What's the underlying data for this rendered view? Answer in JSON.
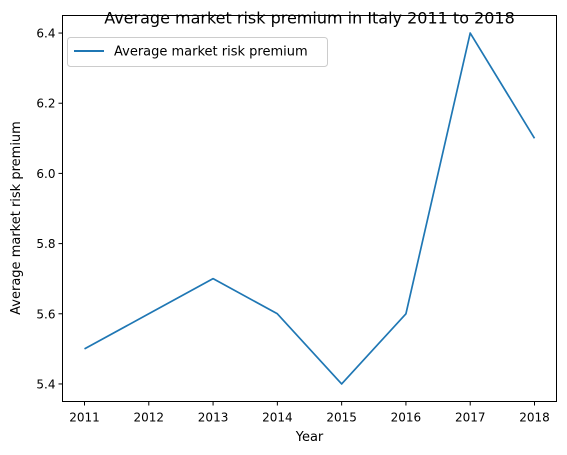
{
  "chart_data": {
    "type": "line",
    "title": "Average market risk premium in Italy 2011 to 2018",
    "xlabel": "Year",
    "ylabel": "Average market risk premium",
    "x": [
      "2011",
      "2012",
      "2013",
      "2014",
      "2015",
      "2016",
      "2017",
      "2018"
    ],
    "series": [
      {
        "name": "Average market risk premium",
        "color": "#1f77b4",
        "values": [
          5.5,
          5.6,
          5.7,
          5.6,
          5.4,
          5.6,
          6.4,
          6.1
        ]
      }
    ],
    "yticks": [
      "5.4",
      "5.6",
      "5.8",
      "6.0",
      "6.2",
      "6.4"
    ],
    "ylim": [
      5.35,
      6.45
    ],
    "grid": false,
    "legend": "top-left"
  }
}
